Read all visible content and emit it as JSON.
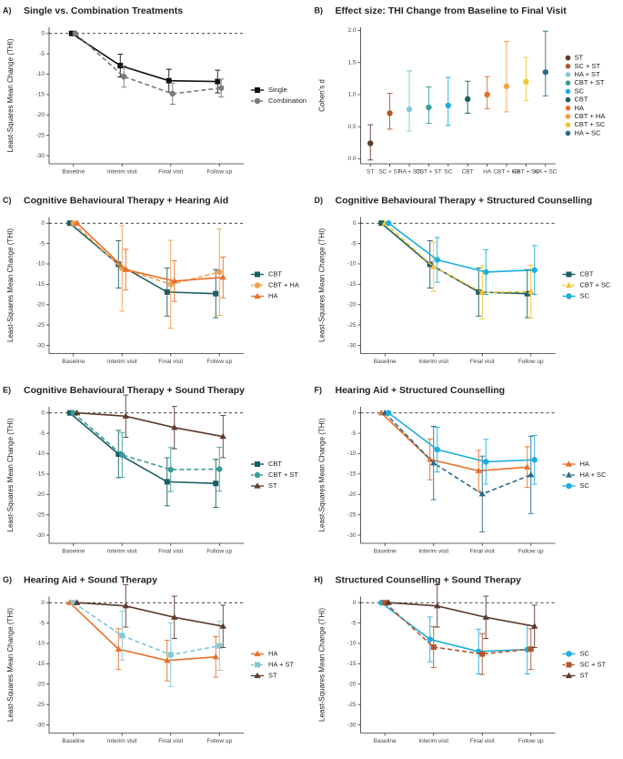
{
  "chart_data": [
    {
      "type": "line",
      "panel_label": "A)",
      "title": "Single vs. Combination Treatments",
      "ylabel": "Least-Squares Mean Change (THI)",
      "categories": [
        "Baseline",
        "Interim visit",
        "Final visit",
        "Follow up"
      ],
      "ylim": [
        -32,
        1.5
      ],
      "yticks": [
        0,
        -5,
        -10,
        -15,
        -20,
        -25,
        -30
      ],
      "hline": 0,
      "series": [
        {
          "name": "Single",
          "color": "#111111",
          "marker": "square",
          "dash": false,
          "values": [
            0,
            -7.9,
            -11.6,
            -11.8
          ],
          "errors": [
            0,
            2.8,
            2.8,
            2.8
          ]
        },
        {
          "name": "Combination",
          "color": "#7a7a7a",
          "marker": "circle",
          "dash": true,
          "values": [
            0,
            -10.6,
            -14.8,
            -13.4
          ],
          "errors": [
            0,
            2.6,
            2.6,
            2.2
          ]
        }
      ]
    },
    {
      "type": "errorbar",
      "panel_label": "B)",
      "title": "Effect size: THI Change from Baseline to Final Visit",
      "ylabel": "Cohen's d",
      "categories": [
        "ST",
        "SC + ST",
        "HA + ST",
        "CBT + ST",
        "SC",
        "CBT",
        "HA",
        "CBT + HA",
        "CBT + SC",
        "HA + SC"
      ],
      "colors": [
        "#5c3a2e",
        "#b5562a",
        "#7ec8d8",
        "#3a9c9a",
        "#1eaee0",
        "#1b5e63",
        "#e8702a",
        "#f5a04a",
        "#f2c531",
        "#2a6b8a"
      ],
      "values": [
        0.24,
        0.71,
        0.77,
        0.8,
        0.83,
        0.93,
        1.0,
        1.13,
        1.2,
        1.35
      ],
      "lower": [
        -0.02,
        0.46,
        0.43,
        0.55,
        0.52,
        0.71,
        0.78,
        0.73,
        0.91,
        0.98
      ],
      "upper": [
        0.53,
        1.02,
        1.37,
        1.12,
        1.27,
        1.21,
        1.28,
        1.83,
        1.58,
        1.99
      ],
      "ylim": [
        -0.08,
        2.05
      ],
      "yticks": [
        {
          "value": 0,
          "label": "0.0"
        },
        {
          "value": 0.5,
          "label": "0.5"
        },
        {
          "value": 1,
          "label": "1.0"
        },
        {
          "value": 1.5,
          "label": "1.5"
        },
        {
          "value": 2,
          "label": "2.0"
        }
      ]
    },
    {
      "type": "line",
      "panel_label": "C)",
      "title": "Cognitive Behavioural Therapy + Hearing Aid",
      "ylabel": "Least-Squares Mean Change (THI)",
      "categories": [
        "Baseline",
        "Interim visit",
        "Final visit",
        "Follow up"
      ],
      "ylim": [
        -32,
        1.5
      ],
      "yticks": [
        0,
        -5,
        -10,
        -15,
        -20,
        -25,
        -30
      ],
      "hline": 0,
      "series": [
        {
          "name": "CBT",
          "color": "#1b5e63",
          "marker": "square",
          "dash": false,
          "values": [
            0,
            -10.1,
            -16.9,
            -17.3
          ],
          "errors": [
            0,
            5.8,
            5.9,
            5.9
          ]
        },
        {
          "name": "CBT + HA",
          "color": "#f5a04a",
          "marker": "circle",
          "dash": true,
          "values": [
            0,
            -11.1,
            -15.0,
            -12.0
          ],
          "errors": [
            0,
            10.5,
            10.8,
            10.6
          ]
        },
        {
          "name": "HA",
          "color": "#e8702a",
          "marker": "triangle",
          "dash": false,
          "values": [
            0,
            -11.4,
            -14.2,
            -13.3
          ],
          "errors": [
            0,
            5,
            5,
            5
          ]
        }
      ]
    },
    {
      "type": "line",
      "panel_label": "D)",
      "title": "Cognitive Behavioural Therapy + Structured Counselling",
      "ylabel": "Least-Squares Mean Change (THI)",
      "categories": [
        "Baseline",
        "Interim visit",
        "Final visit",
        "Follow up"
      ],
      "ylim": [
        -32,
        1.5
      ],
      "yticks": [
        0,
        -5,
        -10,
        -15,
        -20,
        -25,
        -30
      ],
      "hline": 0,
      "series": [
        {
          "name": "CBT",
          "color": "#1b5e63",
          "marker": "square",
          "dash": false,
          "values": [
            0,
            -10.1,
            -16.9,
            -17.3
          ],
          "errors": [
            0,
            5.8,
            5.9,
            5.9
          ]
        },
        {
          "name": "CBT + SC",
          "color": "#f2c531",
          "marker": "triangle",
          "dash": true,
          "values": [
            0,
            -10.7,
            -17.0,
            -16.8
          ],
          "errors": [
            0,
            6,
            6.5,
            6.5
          ]
        },
        {
          "name": "SC",
          "color": "#1eaee0",
          "marker": "circle",
          "dash": false,
          "values": [
            0,
            -9.0,
            -12.0,
            -11.5
          ],
          "errors": [
            0,
            5.5,
            5.5,
            6
          ]
        }
      ]
    },
    {
      "type": "line",
      "panel_label": "E)",
      "title": "Cognitive Behavioural Therapy + Sound Therapy",
      "ylabel": "Least-Squares Mean Change (THI)",
      "categories": [
        "Baseline",
        "Interim visit",
        "Final visit",
        "Follow up"
      ],
      "ylim": [
        -32,
        1.5
      ],
      "yticks": [
        0,
        -5,
        -10,
        -15,
        -20,
        -25,
        -30
      ],
      "hline": 0,
      "series": [
        {
          "name": "CBT",
          "color": "#1b5e63",
          "marker": "square",
          "dash": false,
          "values": [
            0,
            -10.1,
            -16.9,
            -17.3
          ],
          "errors": [
            0,
            5.8,
            5.9,
            5.9
          ]
        },
        {
          "name": "CBT + ST",
          "color": "#3a9c9a",
          "marker": "circle",
          "dash": true,
          "values": [
            0,
            -10.3,
            -13.9,
            -13.8
          ],
          "errors": [
            0,
            5.5,
            5.4,
            5.4
          ]
        },
        {
          "name": "ST",
          "color": "#5c3a2e",
          "marker": "triangle",
          "dash": false,
          "values": [
            0,
            -0.8,
            -3.6,
            -5.8
          ],
          "errors": [
            0,
            5.2,
            5.2,
            5.2
          ]
        }
      ]
    },
    {
      "type": "line",
      "panel_label": "F)",
      "title": "Hearing Aid + Structured Counselling",
      "ylabel": "Least-Squares Mean Change (THI)",
      "categories": [
        "Baseline",
        "Interim visit",
        "Final visit",
        "Follow up"
      ],
      "ylim": [
        -32,
        1.5
      ],
      "yticks": [
        0,
        -5,
        -10,
        -15,
        -20,
        -25,
        -30
      ],
      "hline": 0,
      "series": [
        {
          "name": "HA",
          "color": "#e8702a",
          "marker": "triangle",
          "dash": false,
          "values": [
            0,
            -11.4,
            -14.2,
            -13.3
          ],
          "errors": [
            0,
            5,
            5,
            5
          ]
        },
        {
          "name": "HA + SC",
          "color": "#2a6b8a",
          "marker": "triangle",
          "dash": true,
          "values": [
            0,
            -12.3,
            -19.9,
            -15.2
          ],
          "errors": [
            0,
            9,
            9.3,
            9.5
          ]
        },
        {
          "name": "SC",
          "color": "#1eaee0",
          "marker": "circle",
          "dash": false,
          "values": [
            0,
            -9.0,
            -12.0,
            -11.5
          ],
          "errors": [
            0,
            5.5,
            5.5,
            6
          ]
        }
      ]
    },
    {
      "type": "line",
      "panel_label": "G)",
      "title": "Hearing Aid + Sound Therapy",
      "ylabel": "Least-Squares Mean Change (THI)",
      "categories": [
        "Baseline",
        "Interim visit",
        "Final visit",
        "Follow up"
      ],
      "ylim": [
        -32,
        1.5
      ],
      "yticks": [
        0,
        -5,
        -10,
        -15,
        -20,
        -25,
        -30
      ],
      "hline": 0,
      "series": [
        {
          "name": "HA",
          "color": "#e8702a",
          "marker": "triangle",
          "dash": false,
          "values": [
            0,
            -11.4,
            -14.2,
            -13.3
          ],
          "errors": [
            0,
            5,
            5,
            5
          ]
        },
        {
          "name": "HA + ST",
          "color": "#7ec8d8",
          "marker": "square",
          "dash": true,
          "values": [
            0,
            -8.1,
            -12.8,
            -10.6
          ],
          "errors": [
            0,
            6,
            7.8,
            6
          ]
        },
        {
          "name": "ST",
          "color": "#5c3a2e",
          "marker": "triangle",
          "dash": false,
          "values": [
            0,
            -0.8,
            -3.6,
            -5.8
          ],
          "errors": [
            0,
            5.2,
            5.2,
            5.2
          ]
        }
      ]
    },
    {
      "type": "line",
      "panel_label": "H)",
      "title": "Structured Counselling + Sound Therapy",
      "ylabel": "Least-Squares Mean Change (THI)",
      "categories": [
        "Baseline",
        "Interim visit",
        "Final visit",
        "Follow up"
      ],
      "ylim": [
        -32,
        1.5
      ],
      "yticks": [
        0,
        -5,
        -10,
        -15,
        -20,
        -25,
        -30
      ],
      "hline": 0,
      "series": [
        {
          "name": "SC",
          "color": "#1eaee0",
          "marker": "circle",
          "dash": false,
          "values": [
            0,
            -9.0,
            -12.0,
            -11.5
          ],
          "errors": [
            0,
            5.5,
            5.5,
            6
          ]
        },
        {
          "name": "SC + ST",
          "color": "#b5562a",
          "marker": "square",
          "dash": true,
          "values": [
            0,
            -10.9,
            -12.6,
            -11.4
          ],
          "errors": [
            0,
            5,
            5,
            5
          ]
        },
        {
          "name": "ST",
          "color": "#5c3a2e",
          "marker": "triangle",
          "dash": false,
          "values": [
            0,
            -0.8,
            -3.6,
            -5.8
          ],
          "errors": [
            0,
            5.2,
            5.2,
            5.2
          ]
        }
      ]
    }
  ]
}
